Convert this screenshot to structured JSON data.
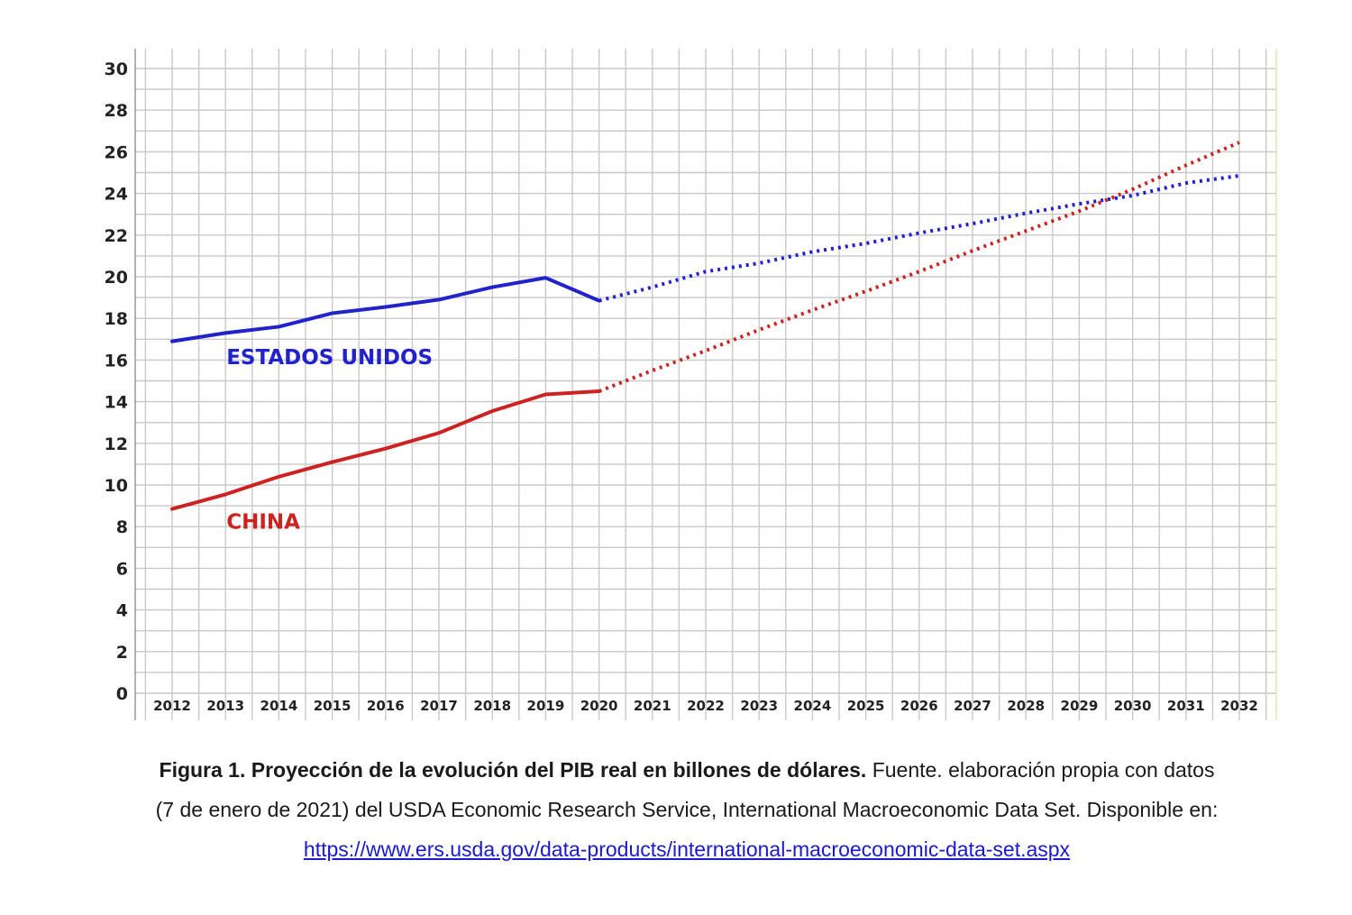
{
  "chart_data": {
    "type": "line",
    "x": [
      2012,
      2013,
      2014,
      2015,
      2016,
      2017,
      2018,
      2019,
      2020,
      2021,
      2022,
      2023,
      2024,
      2025,
      2026,
      2027,
      2028,
      2029,
      2030,
      2031,
      2032
    ],
    "xticks": [
      "2012",
      "2013",
      "2014",
      "2015",
      "2016",
      "2017",
      "2018",
      "2019",
      "2020",
      "2021",
      "2022",
      "2023",
      "2024",
      "2025",
      "2026",
      "2027",
      "2028",
      "2029",
      "2030",
      "2031",
      "2032"
    ],
    "yticks": [
      "0",
      "2",
      "4",
      "6",
      "8",
      "10",
      "12",
      "14",
      "16",
      "18",
      "20",
      "22",
      "24",
      "26",
      "28",
      "30"
    ],
    "ylim": [
      0,
      30
    ],
    "xlim": [
      2012,
      2032
    ],
    "grid": true,
    "projection_start": 2020,
    "series": [
      {
        "name": "ESTADOS UNIDOS",
        "color": "#2222cc",
        "values": [
          16.9,
          17.3,
          17.6,
          18.25,
          18.55,
          18.9,
          19.5,
          19.95,
          18.85,
          19.5,
          20.25,
          20.65,
          21.2,
          21.6,
          22.1,
          22.55,
          23.05,
          23.5,
          23.9,
          24.5,
          24.85
        ]
      },
      {
        "name": "CHINA",
        "color": "#cc2222",
        "values": [
          8.85,
          9.55,
          10.4,
          11.1,
          11.75,
          12.5,
          13.55,
          14.35,
          14.5,
          15.5,
          16.45,
          17.45,
          18.4,
          19.3,
          20.25,
          21.25,
          22.2,
          23.15,
          24.2,
          25.35,
          26.45
        ]
      }
    ]
  },
  "caption": {
    "bold": "Figura 1. Proyección de la evolución del PIB real en billones de dólares.",
    "line1_rest": " Fuente. elaboración propia con datos",
    "line2": "(7 de enero de 2021) del USDA Economic Research Service, International Macroeconomic Data Set. Disponible en:",
    "link": "https://www.ers.usda.gov/data-products/international-macroeconomic-data-set.aspx"
  }
}
